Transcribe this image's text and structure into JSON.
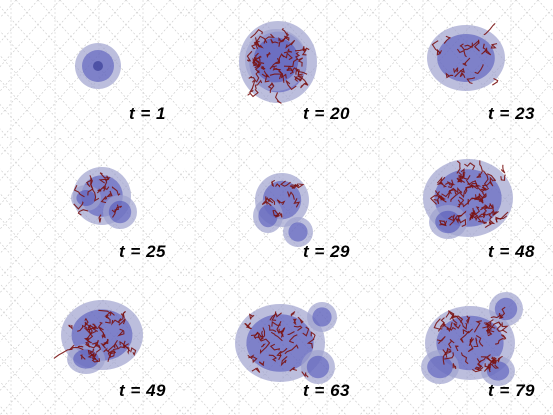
{
  "panels": [
    {
      "label": "t = 1"
    },
    {
      "label": "t = 20"
    },
    {
      "label": "t = 23"
    },
    {
      "label": "t = 25"
    },
    {
      "label": "t = 29"
    },
    {
      "label": "t = 48"
    },
    {
      "label": "t = 49"
    },
    {
      "label": "t = 63"
    },
    {
      "label": "t = 79"
    }
  ],
  "colors": {
    "blob": "#4a4fb8",
    "blob_halo": "#9fa3cf",
    "filament": "#7a1212",
    "grid": "#c8c8c8"
  }
}
